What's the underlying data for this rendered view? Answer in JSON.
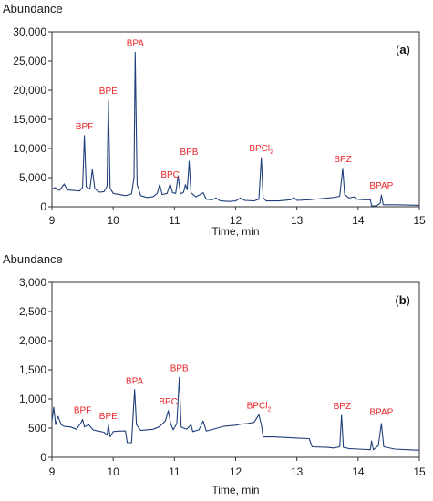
{
  "chart_data": [
    {
      "type": "line",
      "ylabel": "Abundance",
      "xlabel": "Time, min",
      "panel_label": "(a)",
      "xlim": [
        9,
        15
      ],
      "ylim": [
        0,
        30000
      ],
      "x_ticks": [
        9,
        10,
        11,
        12,
        13,
        14,
        15
      ],
      "y_ticks": [
        0,
        5000,
        10000,
        15000,
        20000,
        25000,
        30000
      ],
      "y_tick_labels": [
        "0",
        "5,000",
        "10,000",
        "15,000",
        "20,000",
        "25,000",
        "30,000"
      ],
      "line_color": "#1f3f7a",
      "label_color": "#e8252b",
      "annotations": [
        {
          "text": "BPF",
          "x": 9.53,
          "y": 12200
        },
        {
          "text": "BPE",
          "x": 9.92,
          "y": 18300
        },
        {
          "text": "BPA",
          "x": 10.36,
          "y": 26500
        },
        {
          "text": "BPC",
          "x": 10.93,
          "y": 3900
        },
        {
          "text": "BPB",
          "x": 11.24,
          "y": 7800
        },
        {
          "text": "BPCl",
          "sub": "2",
          "x": 12.42,
          "y": 8400
        },
        {
          "text": "BPZ",
          "x": 13.75,
          "y": 6600
        },
        {
          "text": "BPAP",
          "x": 14.38,
          "y": 2000
        }
      ],
      "series": [
        {
          "points": [
            [
              9.0,
              3000
            ],
            [
              9.05,
              3300
            ],
            [
              9.12,
              2800
            ],
            [
              9.2,
              3900
            ],
            [
              9.25,
              2900
            ],
            [
              9.35,
              2800
            ],
            [
              9.45,
              2700
            ],
            [
              9.5,
              3300
            ],
            [
              9.53,
              12200
            ],
            [
              9.56,
              3400
            ],
            [
              9.62,
              3000
            ],
            [
              9.66,
              6400
            ],
            [
              9.7,
              3100
            ],
            [
              9.78,
              2500
            ],
            [
              9.85,
              2600
            ],
            [
              9.9,
              3600
            ],
            [
              9.92,
              18300
            ],
            [
              9.95,
              3200
            ],
            [
              10.0,
              2300
            ],
            [
              10.1,
              2100
            ],
            [
              10.2,
              1900
            ],
            [
              10.3,
              2200
            ],
            [
              10.34,
              5000
            ],
            [
              10.36,
              26500
            ],
            [
              10.39,
              3800
            ],
            [
              10.45,
              1900
            ],
            [
              10.55,
              1600
            ],
            [
              10.65,
              1700
            ],
            [
              10.72,
              2300
            ],
            [
              10.76,
              3800
            ],
            [
              10.8,
              2100
            ],
            [
              10.88,
              2300
            ],
            [
              10.93,
              3900
            ],
            [
              10.97,
              2400
            ],
            [
              11.02,
              2300
            ],
            [
              11.06,
              5300
            ],
            [
              11.1,
              2200
            ],
            [
              11.15,
              2500
            ],
            [
              11.18,
              3800
            ],
            [
              11.21,
              2900
            ],
            [
              11.24,
              7800
            ],
            [
              11.27,
              2400
            ],
            [
              11.35,
              1700
            ],
            [
              11.42,
              2100
            ],
            [
              11.47,
              2400
            ],
            [
              11.52,
              1300
            ],
            [
              11.62,
              1200
            ],
            [
              11.68,
              1500
            ],
            [
              11.75,
              1000
            ],
            [
              11.9,
              900
            ],
            [
              12.0,
              1000
            ],
            [
              12.08,
              1500
            ],
            [
              12.15,
              1100
            ],
            [
              12.3,
              1000
            ],
            [
              12.38,
              1300
            ],
            [
              12.42,
              8400
            ],
            [
              12.45,
              1500
            ],
            [
              12.5,
              1000
            ],
            [
              12.7,
              1000
            ],
            [
              12.9,
              1200
            ],
            [
              12.95,
              1600
            ],
            [
              13.0,
              1100
            ],
            [
              13.2,
              1200
            ],
            [
              13.4,
              1400
            ],
            [
              13.6,
              1600
            ],
            [
              13.7,
              1800
            ],
            [
              13.75,
              6600
            ],
            [
              13.78,
              2100
            ],
            [
              13.85,
              1500
            ],
            [
              13.93,
              1700
            ],
            [
              13.98,
              1300
            ],
            [
              14.1,
              1200
            ],
            [
              14.2,
              1200
            ],
            [
              14.22,
              150
            ],
            [
              14.3,
              150
            ],
            [
              14.36,
              600
            ],
            [
              14.38,
              2000
            ],
            [
              14.41,
              350
            ],
            [
              14.6,
              350
            ],
            [
              14.8,
              300
            ],
            [
              15.0,
              250
            ]
          ]
        }
      ]
    },
    {
      "type": "line",
      "ylabel": "Abundance",
      "xlabel": "Time, min",
      "panel_label": "(b)",
      "xlim": [
        9,
        15
      ],
      "ylim": [
        0,
        3000
      ],
      "x_ticks": [
        9,
        10,
        11,
        12,
        13,
        14,
        15
      ],
      "y_ticks": [
        0,
        500,
        1000,
        1500,
        2000,
        2500,
        3000
      ],
      "y_tick_labels": [
        "0",
        "500",
        "1,000",
        "1,500",
        "2,000",
        "2,500",
        "3,000"
      ],
      "line_color": "#1f3f7a",
      "label_color": "#e8252b",
      "annotations": [
        {
          "text": "BPF",
          "x": 9.5,
          "y": 650
        },
        {
          "text": "BPE",
          "x": 9.92,
          "y": 550
        },
        {
          "text": "BPA",
          "x": 10.35,
          "y": 1150
        },
        {
          "text": "BPC",
          "x": 10.9,
          "y": 800
        },
        {
          "text": "BPB",
          "x": 11.08,
          "y": 1370
        },
        {
          "text": "BPCl",
          "sub": "2",
          "x": 12.38,
          "y": 730
        },
        {
          "text": "BPZ",
          "x": 13.74,
          "y": 720
        },
        {
          "text": "BPAP",
          "x": 14.38,
          "y": 620
        }
      ],
      "series": [
        {
          "points": [
            [
              9.0,
              620
            ],
            [
              9.03,
              860
            ],
            [
              9.06,
              560
            ],
            [
              9.1,
              700
            ],
            [
              9.15,
              560
            ],
            [
              9.2,
              530
            ],
            [
              9.3,
              520
            ],
            [
              9.4,
              480
            ],
            [
              9.48,
              600
            ],
            [
              9.5,
              650
            ],
            [
              9.53,
              520
            ],
            [
              9.6,
              560
            ],
            [
              9.67,
              470
            ],
            [
              9.75,
              450
            ],
            [
              9.85,
              430
            ],
            [
              9.9,
              380
            ],
            [
              9.92,
              560
            ],
            [
              9.95,
              350
            ],
            [
              10.0,
              440
            ],
            [
              10.1,
              450
            ],
            [
              10.2,
              450
            ],
            [
              10.23,
              250
            ],
            [
              10.3,
              250
            ],
            [
              10.33,
              800
            ],
            [
              10.35,
              1160
            ],
            [
              10.38,
              560
            ],
            [
              10.45,
              460
            ],
            [
              10.55,
              470
            ],
            [
              10.65,
              480
            ],
            [
              10.75,
              520
            ],
            [
              10.85,
              620
            ],
            [
              10.9,
              800
            ],
            [
              10.94,
              570
            ],
            [
              10.98,
              470
            ],
            [
              11.04,
              580
            ],
            [
              11.08,
              1370
            ],
            [
              11.11,
              520
            ],
            [
              11.2,
              480
            ],
            [
              11.27,
              560
            ],
            [
              11.3,
              440
            ],
            [
              11.4,
              470
            ],
            [
              11.47,
              620
            ],
            [
              11.52,
              450
            ],
            [
              11.6,
              470
            ],
            [
              11.7,
              500
            ],
            [
              11.8,
              530
            ],
            [
              11.9,
              540
            ],
            [
              12.0,
              550
            ],
            [
              12.1,
              570
            ],
            [
              12.2,
              580
            ],
            [
              12.3,
              600
            ],
            [
              12.38,
              730
            ],
            [
              12.42,
              560
            ],
            [
              12.45,
              350
            ],
            [
              12.6,
              350
            ],
            [
              12.8,
              340
            ],
            [
              13.0,
              330
            ],
            [
              13.2,
              320
            ],
            [
              13.25,
              180
            ],
            [
              13.5,
              170
            ],
            [
              13.6,
              160
            ],
            [
              13.7,
              180
            ],
            [
              13.73,
              720
            ],
            [
              13.76,
              170
            ],
            [
              13.85,
              150
            ],
            [
              14.0,
              140
            ],
            [
              14.2,
              130
            ],
            [
              14.22,
              280
            ],
            [
              14.25,
              130
            ],
            [
              14.33,
              200
            ],
            [
              14.38,
              580
            ],
            [
              14.42,
              180
            ],
            [
              14.6,
              140
            ],
            [
              14.8,
              130
            ],
            [
              15.0,
              120
            ]
          ]
        }
      ]
    }
  ]
}
